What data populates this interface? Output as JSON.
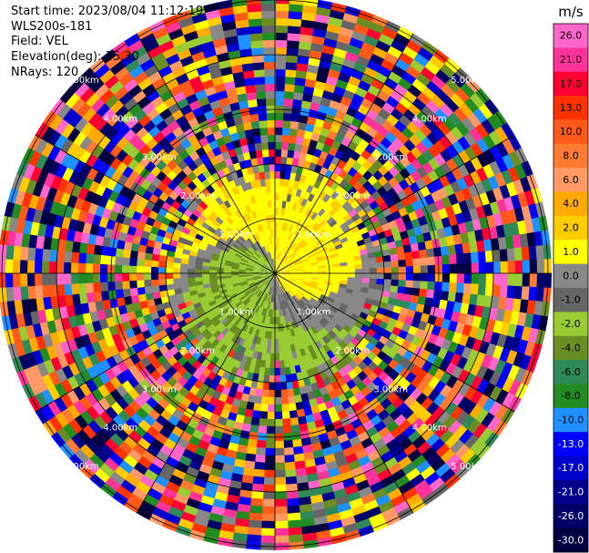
{
  "info": {
    "start_time": "Start time: 2023/08/04 11:12:19",
    "instrument": "WLS200s-181",
    "field": "Field: VEL",
    "elevation": "Elevation(deg): 35.30",
    "nrays": "NRays: 120"
  },
  "chart_data": {
    "type": "heatmap",
    "projection": "polar-ppi",
    "field": "VEL",
    "units": "m/s",
    "n_rays": 120,
    "max_range_km": 5.0,
    "range_ring_labels": [
      "1.00km",
      "2.00km",
      "3.00km",
      "4.00km",
      "5.00km"
    ],
    "colorbar": {
      "label": "m/s",
      "ticks": [
        "26.0",
        "21.0",
        "17.0",
        "13.0",
        "10.0",
        "8.0",
        "6.0",
        "4.0",
        "2.0",
        "1.0",
        "0.0",
        "-1.0",
        "-2.0",
        "-4.0",
        "-6.0",
        "-8.0",
        "-10.0",
        "-13.0",
        "-17.0",
        "-21.0",
        "-26.0",
        "-30.0"
      ],
      "colors": [
        "#ff66cc",
        "#ff3399",
        "#ff0033",
        "#ff3300",
        "#ff5a1a",
        "#ff7a33",
        "#ff9966",
        "#ffaa00",
        "#ffcc00",
        "#ffff00",
        "#888888",
        "#666666",
        "#99cc33",
        "#6b8e23",
        "#2e8b57",
        "#228b22",
        "#1e90ff",
        "#0000ff",
        "#0000cd",
        "#00008b",
        "#000066",
        "#000040"
      ]
    }
  }
}
